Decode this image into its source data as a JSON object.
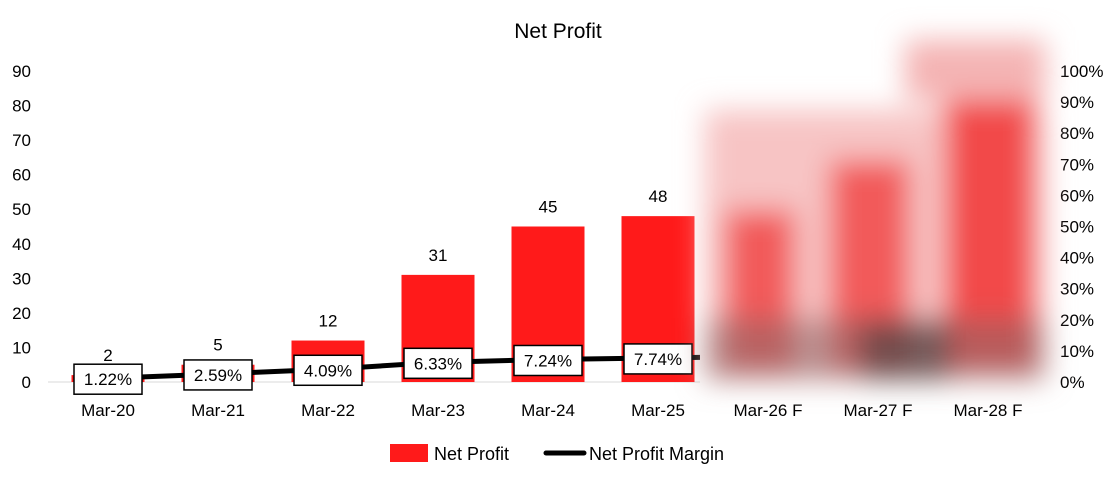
{
  "chart_data": {
    "type": "bar",
    "title": "Net Profit",
    "categories": [
      "Mar-20",
      "Mar-21",
      "Mar-22",
      "Mar-23",
      "Mar-24",
      "Mar-25",
      "Mar-26 F",
      "Mar-27 F",
      "Mar-28 F"
    ],
    "series": [
      {
        "name": "Net Profit",
        "type": "bar",
        "axis": "left",
        "color": "#ff1a1a",
        "values": [
          2,
          5,
          12,
          31,
          45,
          48,
          null,
          null,
          null
        ],
        "labels": [
          "2",
          "5",
          "12",
          "31",
          "45",
          "48",
          "",
          "",
          ""
        ]
      },
      {
        "name": "Net Profit Margin",
        "type": "line",
        "axis": "right",
        "color": "#000000",
        "values": [
          0.0122,
          0.0259,
          0.0409,
          0.0633,
          0.0724,
          0.0774,
          null,
          null,
          null
        ],
        "labels": [
          "1.22%",
          "2.59%",
          "4.09%",
          "6.33%",
          "7.24%",
          "7.74%",
          "",
          "",
          ""
        ]
      }
    ],
    "y_left": {
      "min": 0,
      "max": 90,
      "ticks": [
        "0",
        "10",
        "20",
        "30",
        "40",
        "50",
        "60",
        "70",
        "80",
        "90"
      ]
    },
    "y_right": {
      "min": 0,
      "max": 1,
      "ticks": [
        "0%",
        "10%",
        "20%",
        "30%",
        "40%",
        "50%",
        "60%",
        "70%",
        "80%",
        "90%",
        "100%"
      ]
    },
    "grid": false,
    "legend": {
      "position": "bottom",
      "items": [
        "Net Profit",
        "Net Profit Margin"
      ]
    },
    "obscured_region": "forecast-columns-pixelated"
  }
}
